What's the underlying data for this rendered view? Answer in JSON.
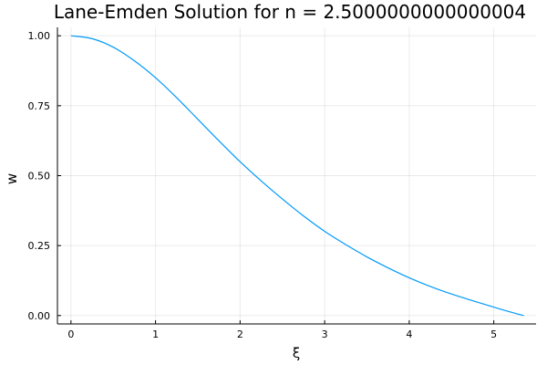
{
  "chart_data": {
    "type": "line",
    "title": "Lane-Emden Solution for n = 2.5000000000000004",
    "xlabel": "ξ",
    "ylabel": "w",
    "xlim": [
      -0.16,
      5.5
    ],
    "ylim": [
      -0.03,
      1.03
    ],
    "xticks": [
      0,
      1,
      2,
      3,
      4,
      5
    ],
    "xtick_labels": [
      "0",
      "1",
      "2",
      "3",
      "4",
      "5"
    ],
    "yticks": [
      0.0,
      0.25,
      0.5,
      0.75,
      1.0
    ],
    "ytick_labels": [
      "0.00",
      "0.25",
      "0.50",
      "0.75",
      "1.00"
    ],
    "grid": true,
    "legend": "none",
    "series": [
      {
        "color": "#009AFA",
        "x": [
          0.0,
          0.25,
          0.5,
          0.75,
          1.0,
          1.25,
          1.5,
          1.75,
          2.0,
          2.25,
          2.5,
          2.75,
          3.0,
          3.25,
          3.5,
          3.75,
          4.0,
          4.25,
          4.5,
          4.75,
          5.0,
          5.25,
          5.355
        ],
        "y": [
          1.0,
          0.9896,
          0.9592,
          0.9104,
          0.8499,
          0.7786,
          0.7017,
          0.6246,
          0.5498,
          0.481,
          0.4165,
          0.356,
          0.301,
          0.2535,
          0.2095,
          0.1705,
          0.135,
          0.104,
          0.077,
          0.053,
          0.03,
          0.008,
          0.0
        ]
      }
    ]
  }
}
